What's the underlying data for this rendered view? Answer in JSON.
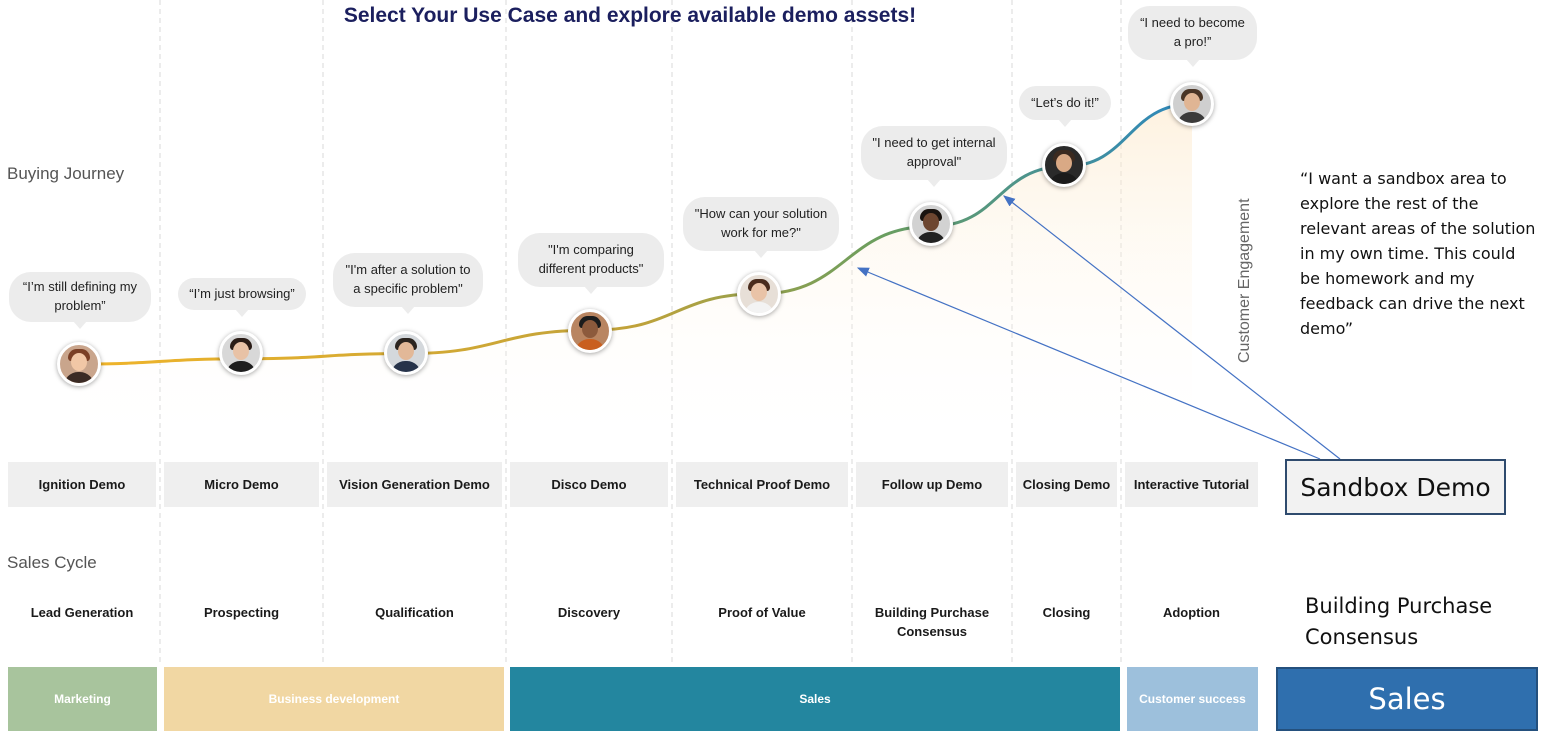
{
  "title": "Select Your Use Case and explore available demo assets!",
  "labels": {
    "buying_journey": "Buying Journey",
    "sales_cycle": "Sales Cycle",
    "customer_engagement": "Customer Engagement"
  },
  "stages": [
    {
      "quote": "“I’m still defining my problem”",
      "demo": "Ignition Demo",
      "stage": "Lead Generation",
      "level": 0.0
    },
    {
      "quote": "“I’m just browsing”",
      "demo": "Micro Demo",
      "stage": "Prospecting",
      "level": 0.02
    },
    {
      "quote": "\"I'm after a solution to a specific problem\"",
      "demo": "Vision Generation Demo",
      "stage": "Qualification",
      "level": 0.04
    },
    {
      "quote": "\"I'm comparing different products\"",
      "demo": "Disco Demo",
      "stage": "Discovery",
      "level": 0.13
    },
    {
      "quote": "\"How can your solution work for me?\"",
      "demo": "Technical Proof Demo",
      "stage": "Proof of Value",
      "level": 0.27
    },
    {
      "quote": "\"I need to get internal approval\"",
      "demo": "Follow up Demo",
      "stage": "Building Purchase Consensus",
      "level": 0.53
    },
    {
      "quote": "“Let’s do it!”",
      "demo": "Closing Demo",
      "stage": "Closing",
      "level": 0.76
    },
    {
      "quote": "“I need to become a pro!”",
      "demo": "Interactive Tutorial",
      "stage": "Adoption",
      "level": 1.0
    }
  ],
  "teams": [
    {
      "name": "Marketing",
      "color": "#a8c49d"
    },
    {
      "name": "Business development",
      "color": "#f1d7a3"
    },
    {
      "name": "Sales",
      "color": "#23869f"
    },
    {
      "name": "Customer success",
      "color": "#9dc0dc"
    }
  ],
  "curve_colors": {
    "start": "#f0b429",
    "mid": "#6a9e5f",
    "end": "#2b87bf"
  },
  "annotation": {
    "quote": "“I want a sandbox area to explore the rest of the relevant areas of the solution in my own time. This could be homework and my feedback can drive the next demo”",
    "sandbox_label": "Sandbox Demo",
    "stage_label": "Building Purchase Consensus",
    "team_label": "Sales",
    "team_color": "#2f6fae",
    "arrow_color": "#4472c4"
  }
}
